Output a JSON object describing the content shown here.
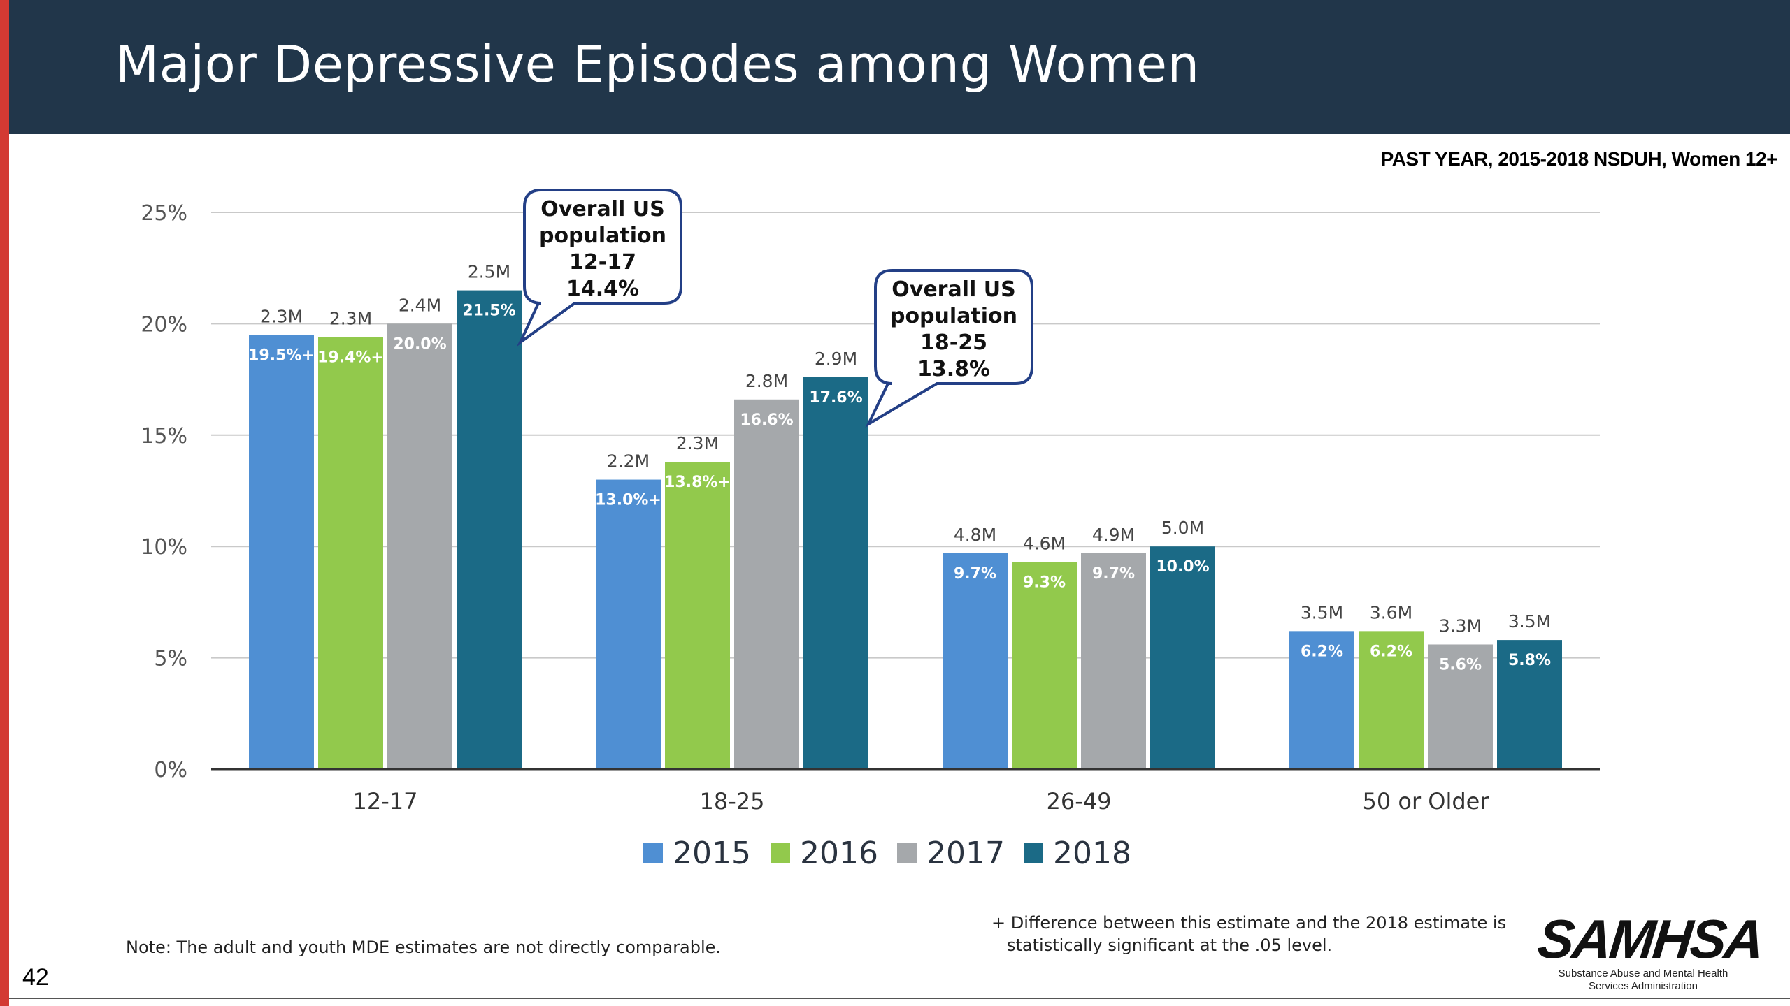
{
  "slide": {
    "title": "Major Depressive Episodes among Women",
    "subtitle": "PAST YEAR, 2015-2018 NSDUH, Women 12+",
    "note": "Note: The adult and youth MDE estimates are not directly comparable.",
    "footnote": "+ Difference between this estimate and the 2018 estimate is statistically significant at the .05 level.",
    "page_number": "42",
    "logo": {
      "name": "SAMHSA",
      "subtitle": "Substance Abuse and Mental Health Services Administration"
    },
    "colors": {
      "header": "#21364a",
      "accent": "#d33a33"
    }
  },
  "chart_data": {
    "type": "bar",
    "categories": [
      "12-17",
      "18-25",
      "26-49",
      "50 or Older"
    ],
    "ylim": [
      0,
      25
    ],
    "yticks": [
      0,
      5,
      10,
      15,
      20,
      25
    ],
    "ytick_labels": [
      "0%",
      "5%",
      "10%",
      "15%",
      "20%",
      "25%"
    ],
    "grid": true,
    "legend_position": "bottom",
    "series": [
      {
        "name": "2015",
        "color": "#4f8fd3",
        "values": [
          19.5,
          13.0,
          9.7,
          6.2
        ],
        "value_labels": [
          "19.5%+",
          "13.0%+",
          "9.7%",
          "6.2%"
        ],
        "counts": [
          "2.3M",
          "2.2M",
          "4.8M",
          "3.5M"
        ]
      },
      {
        "name": "2016",
        "color": "#92c94c",
        "values": [
          19.4,
          13.8,
          9.3,
          6.2
        ],
        "value_labels": [
          "19.4%+",
          "13.8%+",
          "9.3%",
          "6.2%"
        ],
        "counts": [
          "2.3M",
          "2.3M",
          "4.6M",
          "3.6M"
        ]
      },
      {
        "name": "2017",
        "color": "#a5a8ab",
        "values": [
          20.0,
          16.6,
          9.7,
          5.6
        ],
        "value_labels": [
          "20.0%",
          "16.6%",
          "9.7%",
          "5.6%"
        ],
        "counts": [
          "2.4M",
          "2.8M",
          "4.9M",
          "3.3M"
        ]
      },
      {
        "name": "2018",
        "color": "#1b6a86",
        "values": [
          21.5,
          17.6,
          10.0,
          5.8
        ],
        "value_labels": [
          "21.5%",
          "17.6%",
          "10.0%",
          "5.8%"
        ],
        "counts": [
          "2.5M",
          "2.9M",
          "5.0M",
          "3.5M"
        ]
      }
    ],
    "annotations": [
      {
        "category": "12-17",
        "series": "2018",
        "lines": [
          "Overall US",
          "population",
          "12-17",
          "14.4%"
        ]
      },
      {
        "category": "18-25",
        "series": "2018",
        "lines": [
          "Overall US",
          "population",
          "18-25",
          "13.8%"
        ]
      }
    ]
  }
}
